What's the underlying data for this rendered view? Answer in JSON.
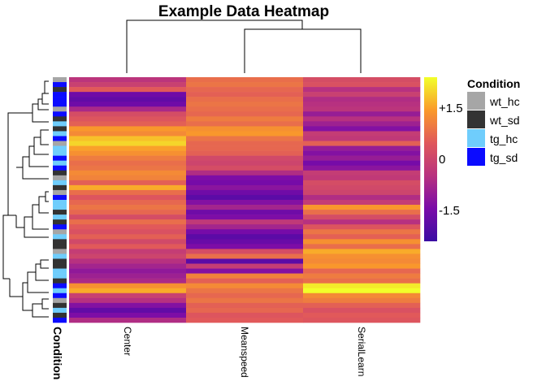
{
  "chart_data": {
    "type": "heatmap",
    "title": "Example Data Heatmap",
    "columns": [
      "Center",
      "Meanspeed",
      "SerialLearn"
    ],
    "column_annotation_label": "Condition",
    "n_rows": 50,
    "values": [
      [
        -0.4,
        0.8,
        0.2
      ],
      [
        -0.1,
        0.9,
        0.3
      ],
      [
        0.5,
        0.7,
        -0.5
      ],
      [
        -1.6,
        0.6,
        -0.1
      ],
      [
        -1.8,
        0.8,
        -0.6
      ],
      [
        -1.6,
        0.9,
        -0.5
      ],
      [
        -0.7,
        0.8,
        -0.4
      ],
      [
        0.2,
        0.7,
        -1.0
      ],
      [
        0.4,
        1.0,
        -0.5
      ],
      [
        0.6,
        0.8,
        -0.9
      ],
      [
        1.4,
        1.3,
        -1.3
      ],
      [
        1.2,
        1.4,
        -0.2
      ],
      [
        1.8,
        0.9,
        -0.3
      ],
      [
        2.0,
        0.7,
        0.6
      ],
      [
        1.5,
        0.7,
        -1.0
      ],
      [
        1.3,
        0.6,
        -1.3
      ],
      [
        1.0,
        0.1,
        -1.0
      ],
      [
        0.8,
        0.0,
        -1.5
      ],
      [
        0.9,
        0.2,
        -1.2
      ],
      [
        1.2,
        -0.6,
        -0.2
      ],
      [
        1.1,
        -1.4,
        -0.3
      ],
      [
        0.6,
        -1.5,
        0.2
      ],
      [
        1.6,
        -1.2,
        0.1
      ],
      [
        0.8,
        -1.6,
        0.0
      ],
      [
        0.4,
        -1.9,
        -0.6
      ],
      [
        0.7,
        -1.3,
        -0.2
      ],
      [
        0.9,
        -0.8,
        1.4
      ],
      [
        0.7,
        -1.6,
        0.8
      ],
      [
        0.2,
        -1.4,
        0.2
      ],
      [
        0.8,
        -0.3,
        -0.5
      ],
      [
        0.5,
        -0.8,
        0.4
      ],
      [
        0.3,
        -1.5,
        0.9
      ],
      [
        0.6,
        -1.9,
        0.6
      ],
      [
        0.1,
        -1.7,
        1.3
      ],
      [
        0.5,
        -1.4,
        0.8
      ],
      [
        -0.2,
        0.2,
        1.6
      ],
      [
        0.0,
        0.8,
        1.3
      ],
      [
        -0.5,
        -1.9,
        1.2
      ],
      [
        -0.8,
        -0.2,
        1.4
      ],
      [
        -1.1,
        -1.3,
        0.7
      ],
      [
        -0.9,
        1.1,
        1.0
      ],
      [
        -0.7,
        0.6,
        0.8
      ],
      [
        1.3,
        1.2,
        2.2
      ],
      [
        1.6,
        0.9,
        2.4
      ],
      [
        -0.1,
        0.7,
        1.2
      ],
      [
        -0.5,
        0.9,
        1.0
      ],
      [
        -1.3,
        0.6,
        0.6
      ],
      [
        -1.8,
        0.7,
        0.3
      ],
      [
        -1.4,
        0.4,
        0.5
      ],
      [
        -0.6,
        0.5,
        0.4
      ]
    ],
    "row_condition": [
      "wt_hc",
      "tg_sd",
      "wt_sd",
      "tg_sd",
      "tg_sd",
      "tg_sd",
      "wt_hc",
      "tg_sd",
      "wt_sd",
      "tg_hc",
      "wt_sd",
      "tg_hc",
      "tg_sd",
      "wt_hc",
      "tg_hc",
      "tg_hc",
      "tg_sd",
      "tg_hc",
      "tg_sd",
      "wt_sd",
      "wt_hc",
      "tg_hc",
      "wt_sd",
      "wt_hc",
      "tg_sd",
      "tg_hc",
      "tg_hc",
      "wt_sd",
      "tg_hc",
      "wt_sd",
      "tg_sd",
      "wt_hc",
      "tg_hc",
      "wt_sd",
      "wt_sd",
      "wt_hc",
      "tg_hc",
      "wt_sd",
      "wt_sd",
      "tg_hc",
      "tg_hc",
      "wt_sd",
      "tg_sd",
      "tg_hc",
      "tg_sd",
      "wt_hc",
      "wt_sd",
      "tg_hc",
      "wt_sd",
      "tg_sd"
    ],
    "color_scale": {
      "min": -2.4,
      "max": 2.4,
      "ticks": [
        1.5,
        0,
        -1.5
      ],
      "tick_labels": [
        "+1.5",
        "0",
        "-1.5"
      ]
    },
    "legend": {
      "title": "Condition",
      "placement": "right",
      "entries": [
        {
          "label": "wt_hc",
          "color": "#a6a6a6"
        },
        {
          "label": "wt_sd",
          "color": "#333333"
        },
        {
          "label": "tg_hc",
          "color": "#6fcdfc"
        },
        {
          "label": "tg_sd",
          "color": "#0b0bff"
        }
      ]
    }
  }
}
